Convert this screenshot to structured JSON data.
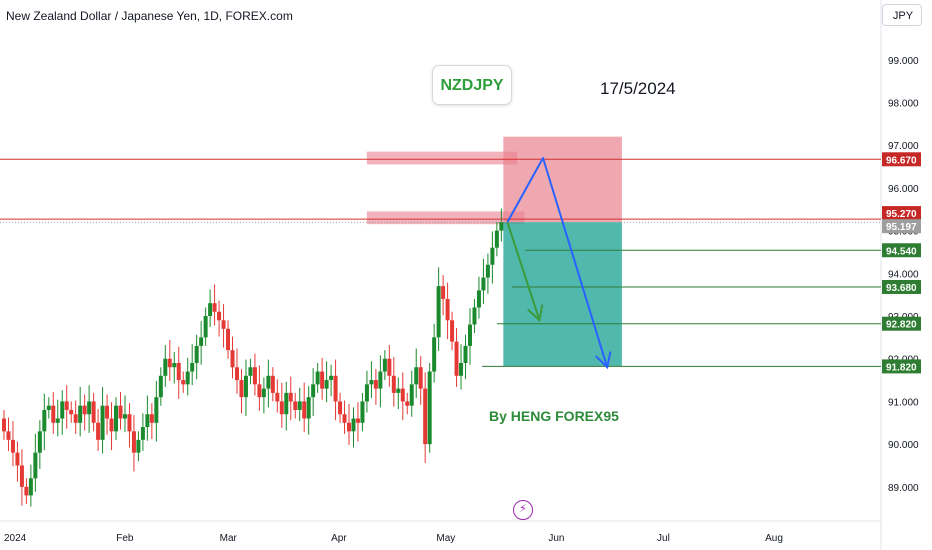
{
  "header": {
    "symbol_title": "New Zealand Dollar / Japanese Yen, 1D, FOREX.com",
    "currency": "JPY"
  },
  "annotations": {
    "ticker": "NZDJPY",
    "date": "17/5/2024",
    "author": "By HENG FOREX95"
  },
  "icons": {
    "brand": "lightning-bolt-icon"
  },
  "colors": {
    "bull": "#26a69a",
    "bull_body": "#1b8a2e",
    "bear": "#e53935",
    "resistance": "#d32f2f",
    "target": "#2e7d32",
    "arrow_blue": "#2962ff",
    "arrow_green": "#3a9b3a",
    "stop_zone": "#e8838f",
    "target_zone": "#26a69a"
  },
  "chart_data": {
    "type": "candlestick",
    "title": "New Zealand Dollar / Japanese Yen, 1D, FOREX.com",
    "timeframe": "1D",
    "ylim": [
      88.2,
      100.4
    ],
    "y_ticks": [
      "89.000",
      "90.000",
      "91.000",
      "92.000",
      "93.000",
      "94.000",
      "95.000",
      "96.000",
      "97.000",
      "98.000",
      "99.000"
    ],
    "x_ticks": [
      "2024",
      "Feb",
      "Mar",
      "Apr",
      "May",
      "Jun",
      "Jul",
      "Aug"
    ],
    "x_tick_dates": [
      "2024-01-01",
      "2024-02-01",
      "2024-03-01",
      "2024-04-01",
      "2024-05-01",
      "2024-06-01",
      "2024-07-01",
      "2024-08-01"
    ],
    "x_range": [
      "2023-12-28",
      "2024-08-31"
    ],
    "candle_closes": [
      90.3,
      90.1,
      89.8,
      89.5,
      89.0,
      88.8,
      89.2,
      89.8,
      90.3,
      90.8,
      90.9,
      90.5,
      90.6,
      91.0,
      90.8,
      90.7,
      90.5,
      90.9,
      90.7,
      91.0,
      90.5,
      90.1,
      90.9,
      90.6,
      90.3,
      90.9,
      90.6,
      90.7,
      90.3,
      89.8,
      90.1,
      90.4,
      90.7,
      90.5,
      91.1,
      91.6,
      92.0,
      91.8,
      91.9,
      91.5,
      91.4,
      91.7,
      91.9,
      92.3,
      92.5,
      93.0,
      93.3,
      93.1,
      92.9,
      92.7,
      92.2,
      91.8,
      91.5,
      91.1,
      91.6,
      91.8,
      91.4,
      91.1,
      91.3,
      91.6,
      91.2,
      91.0,
      90.7,
      91.2,
      91.0,
      90.8,
      91.0,
      90.6,
      91.1,
      91.4,
      91.7,
      91.3,
      91.5,
      91.6,
      91.0,
      90.7,
      90.5,
      90.3,
      90.6,
      90.5,
      91.0,
      91.4,
      91.5,
      91.3,
      91.7,
      92.0,
      91.6,
      91.2,
      91.3,
      91.0,
      90.9,
      91.4,
      91.8,
      91.3,
      90.0,
      91.7,
      92.5,
      93.7,
      93.4,
      92.9,
      92.4,
      91.6,
      91.9,
      92.3,
      92.8,
      93.2,
      93.6,
      93.9,
      94.2,
      94.6,
      95.0,
      95.2
    ]
  },
  "levels": [
    {
      "label": "96.670",
      "price": 96.67,
      "type": "resistance"
    },
    {
      "label": "95.270",
      "price": 95.27,
      "type": "resistance"
    },
    {
      "label": "95.197",
      "price": 95.197,
      "type": "current"
    },
    {
      "label": "94.540",
      "price": 94.54,
      "type": "target"
    },
    {
      "label": "93.680",
      "price": 93.68,
      "type": "target"
    },
    {
      "label": "92.820",
      "price": 92.82,
      "type": "target"
    },
    {
      "label": "91.820",
      "price": 91.82,
      "type": "target"
    }
  ],
  "position": {
    "entry_price": 95.197,
    "stop_price": 97.2,
    "target_price": 91.82,
    "start_date": "2024-05-16",
    "end_date": "2024-06-16"
  },
  "supply_zones": [
    {
      "low": 96.55,
      "high": 96.85,
      "start_date": "2024-04-01",
      "end_date": "2024-05-16"
    },
    {
      "low": 95.15,
      "high": 95.45,
      "start_date": "2024-04-01",
      "end_date": "2024-05-18"
    }
  ],
  "projection_blue": [
    {
      "date": "2024-05-16",
      "price": 95.2
    },
    {
      "date": "2024-05-26",
      "price": 96.7
    },
    {
      "date": "2024-06-13",
      "price": 91.8
    }
  ],
  "projection_green": [
    {
      "date": "2024-05-16",
      "price": 95.2
    },
    {
      "date": "2024-05-25",
      "price": 92.9
    }
  ]
}
